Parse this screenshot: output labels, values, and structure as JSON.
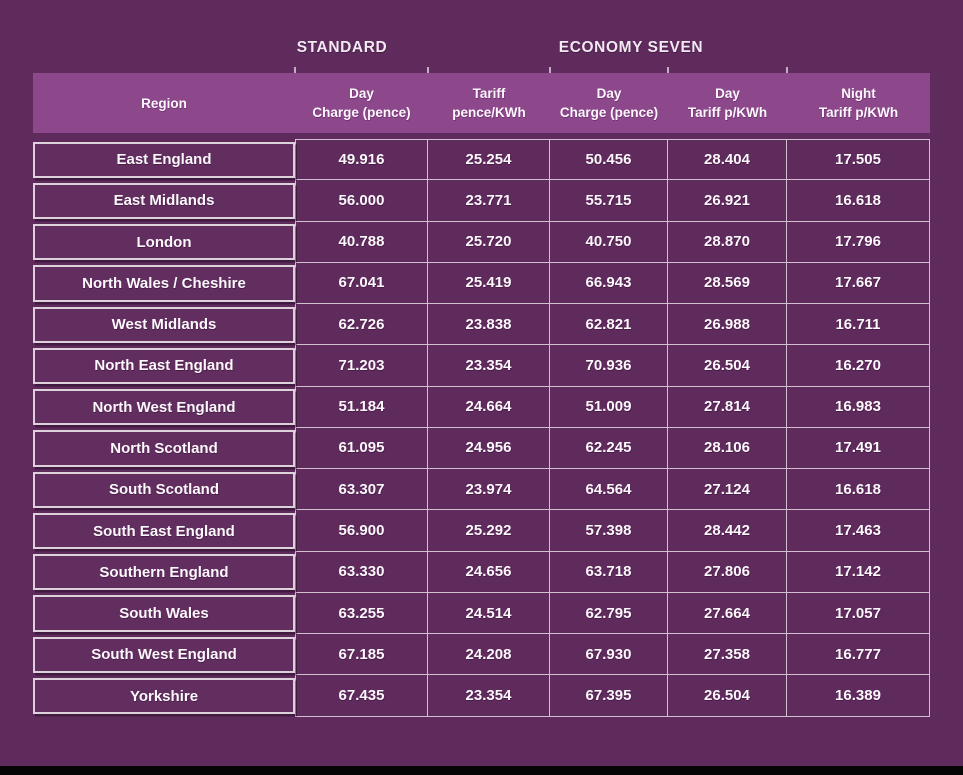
{
  "colors": {
    "page_background": "#5f2a5c",
    "header_band": "#8d488c",
    "grid_line": "#d2c0d1",
    "region_box_border": "#ddd1dc",
    "text": "#fcf8fc",
    "bottom_bar": "#050505"
  },
  "sections": {
    "standard": "STANDARD",
    "economy_seven": "ECONOMY SEVEN"
  },
  "table": {
    "columns": [
      {
        "line1": "Region",
        "line2": ""
      },
      {
        "line1": "Day",
        "line2": "Charge (pence)"
      },
      {
        "line1": "Tariff",
        "line2": "pence/KWh"
      },
      {
        "line1": "Day",
        "line2": "Charge (pence)"
      },
      {
        "line1": "Day",
        "line2": "Tariff p/KWh"
      },
      {
        "line1": "Night",
        "line2": "Tariff p/KWh"
      }
    ],
    "rows": [
      {
        "region": "East England",
        "values": [
          "49.916",
          "25.254",
          "50.456",
          "28.404",
          "17.505"
        ]
      },
      {
        "region": "East Midlands",
        "values": [
          "56.000",
          "23.771",
          "55.715",
          "26.921",
          "16.618"
        ]
      },
      {
        "region": "London",
        "values": [
          "40.788",
          "25.720",
          "40.750",
          "28.870",
          "17.796"
        ]
      },
      {
        "region": "North Wales / Cheshire",
        "values": [
          "67.041",
          "25.419",
          "66.943",
          "28.569",
          "17.667"
        ]
      },
      {
        "region": "West Midlands",
        "values": [
          "62.726",
          "23.838",
          "62.821",
          "26.988",
          "16.711"
        ]
      },
      {
        "region": "North East England",
        "values": [
          "71.203",
          "23.354",
          "70.936",
          "26.504",
          "16.270"
        ]
      },
      {
        "region": "North West England",
        "values": [
          "51.184",
          "24.664",
          "51.009",
          "27.814",
          "16.983"
        ]
      },
      {
        "region": "North Scotland",
        "values": [
          "61.095",
          "24.956",
          "62.245",
          "28.106",
          "17.491"
        ]
      },
      {
        "region": "South Scotland",
        "values": [
          "63.307",
          "23.974",
          "64.564",
          "27.124",
          "16.618"
        ]
      },
      {
        "region": "South East England",
        "values": [
          "56.900",
          "25.292",
          "57.398",
          "28.442",
          "17.463"
        ]
      },
      {
        "region": "Southern England",
        "values": [
          "63.330",
          "24.656",
          "63.718",
          "27.806",
          "17.142"
        ]
      },
      {
        "region": "South Wales",
        "values": [
          "63.255",
          "24.514",
          "62.795",
          "27.664",
          "17.057"
        ]
      },
      {
        "region": "South West England",
        "values": [
          "67.185",
          "24.208",
          "67.930",
          "27.358",
          "16.777"
        ]
      },
      {
        "region": "Yorkshire",
        "values": [
          "67.435",
          "23.354",
          "67.395",
          "26.504",
          "16.389"
        ]
      }
    ]
  },
  "chart_data": {
    "type": "table",
    "column_groups": [
      "STANDARD",
      "ECONOMY SEVEN"
    ],
    "columns": [
      "Region",
      "Standard Day Charge (pence)",
      "Standard Tariff pence/KWh",
      "Economy Seven Day Charge (pence)",
      "Economy Seven Day Tariff p/KWh",
      "Economy Seven Night Tariff p/KWh"
    ],
    "rows": [
      [
        "East England",
        49.916,
        25.254,
        50.456,
        28.404,
        17.505
      ],
      [
        "East Midlands",
        56.0,
        23.771,
        55.715,
        26.921,
        16.618
      ],
      [
        "London",
        40.788,
        25.72,
        40.75,
        28.87,
        17.796
      ],
      [
        "North Wales / Cheshire",
        67.041,
        25.419,
        66.943,
        28.569,
        17.667
      ],
      [
        "West Midlands",
        62.726,
        23.838,
        62.821,
        26.988,
        16.711
      ],
      [
        "North East England",
        71.203,
        23.354,
        70.936,
        26.504,
        16.27
      ],
      [
        "North West England",
        51.184,
        24.664,
        51.009,
        27.814,
        16.983
      ],
      [
        "North Scotland",
        61.095,
        24.956,
        62.245,
        28.106,
        17.491
      ],
      [
        "South Scotland",
        63.307,
        23.974,
        64.564,
        27.124,
        16.618
      ],
      [
        "South East England",
        56.9,
        25.292,
        57.398,
        28.442,
        17.463
      ],
      [
        "Southern England",
        63.33,
        24.656,
        63.718,
        27.806,
        17.142
      ],
      [
        "South Wales",
        63.255,
        24.514,
        62.795,
        27.664,
        17.057
      ],
      [
        "South West England",
        67.185,
        24.208,
        67.93,
        27.358,
        16.777
      ],
      [
        "Yorkshire",
        67.435,
        23.354,
        67.395,
        26.504,
        16.389
      ]
    ]
  }
}
